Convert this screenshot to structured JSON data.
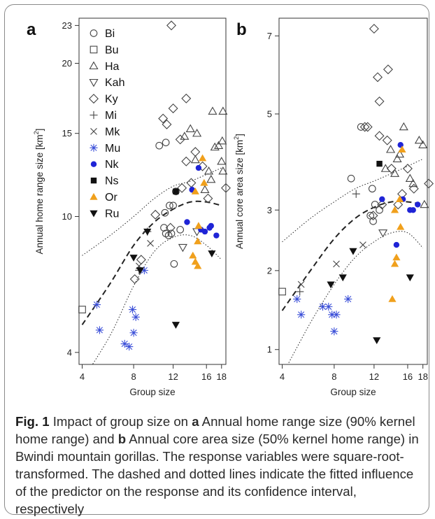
{
  "caption": {
    "label": "Fig. 1",
    "t1": " Impact of group size on ",
    "b1": "a",
    "t2": " Annual home range size (90% kernel home range) and ",
    "b2": "b",
    "t3": " Annual core area size (50% kernel home range) in Bwindi mountain gorillas. The response variables were square-root-transformed. The dashed and dotted lines indicate the fitted influence of the predictor on the response and its confidence interval, respectively"
  },
  "legend": {
    "entries": [
      {
        "name": "Bi",
        "marker": "circle-open",
        "color": "#444444"
      },
      {
        "name": "Bu",
        "marker": "square-open",
        "color": "#444444"
      },
      {
        "name": "Ha",
        "marker": "triangle-up-open",
        "color": "#444444"
      },
      {
        "name": "Kah",
        "marker": "triangle-down-open",
        "color": "#444444"
      },
      {
        "name": "Ky",
        "marker": "diamond-open",
        "color": "#444444"
      },
      {
        "name": "Mi",
        "marker": "plus",
        "color": "#444444"
      },
      {
        "name": "Mk",
        "marker": "cross",
        "color": "#444444"
      },
      {
        "name": "Mu",
        "marker": "asterisk",
        "color": "#3b4fd8"
      },
      {
        "name": "Nk",
        "marker": "circle-filled",
        "color": "#1f24d6"
      },
      {
        "name": "Ns",
        "marker": "square-filled",
        "color": "#111111"
      },
      {
        "name": "Or",
        "marker": "triangle-up-filled",
        "color": "#f0a01c"
      },
      {
        "name": "Ru",
        "marker": "triangle-down-filled",
        "color": "#111111"
      }
    ]
  },
  "chart_data": [
    {
      "panel": "a",
      "type": "scatter",
      "scale": "sqrt",
      "xlabel": "Group size",
      "ylabel_main": "Annual home range size [km",
      "ylabel_sup": "2",
      "ylabel_end": "]",
      "xticks": [
        4,
        8,
        12,
        16,
        18
      ],
      "yticks": [
        4,
        10,
        15,
        20,
        23
      ],
      "xlim": [
        3.8,
        18.6
      ],
      "ylim": [
        3.6,
        23.6
      ],
      "series": [
        {
          "name": "Bi",
          "points": [
            [
              10.5,
              14.2
            ],
            [
              11.2,
              14.4
            ],
            [
              11.6,
              10.6
            ],
            [
              11.1,
              10.2
            ],
            [
              11.0,
              9.4
            ],
            [
              11.2,
              9.1
            ],
            [
              11.5,
              9.0
            ],
            [
              11.8,
              9.1
            ],
            [
              12.0,
              10.6
            ],
            [
              12.3,
              11.4
            ],
            [
              12.1,
              7.6
            ],
            [
              12.8,
              9.3
            ]
          ]
        },
        {
          "name": "Bu",
          "points": [
            [
              4.0,
              5.6
            ]
          ]
        },
        {
          "name": "Ha",
          "points": [
            [
              13.3,
              14.8
            ],
            [
              14.0,
              15.3
            ],
            [
              14.6,
              13.3
            ],
            [
              14.8,
              15.0
            ],
            [
              15.8,
              11.5
            ],
            [
              16.3,
              12.6
            ],
            [
              16.6,
              12.1
            ],
            [
              17.1,
              14.1
            ],
            [
              16.8,
              16.5
            ],
            [
              17.6,
              14.2
            ],
            [
              18.0,
              13.2
            ],
            [
              18.1,
              14.5
            ],
            [
              18.2,
              16.5
            ],
            [
              18.2,
              12.6
            ]
          ]
        },
        {
          "name": "Kah",
          "points": [
            [
              13.1,
              8.4
            ],
            [
              14.8,
              9.2
            ]
          ]
        },
        {
          "name": "Ky",
          "points": [
            [
              11.8,
              23.0
            ],
            [
              10.9,
              16.0
            ],
            [
              11.3,
              15.6
            ],
            [
              12.0,
              16.7
            ],
            [
              12.8,
              14.6
            ],
            [
              13.5,
              17.4
            ],
            [
              13.5,
              13.2
            ],
            [
              14.1,
              11.9
            ],
            [
              14.6,
              13.8
            ],
            [
              15.5,
              12.9
            ],
            [
              16.2,
              11.0
            ],
            [
              8.1,
              6.9
            ],
            [
              8.7,
              7.8
            ],
            [
              10.1,
              10.1
            ],
            [
              11.7,
              9.4
            ],
            [
              13.0,
              11.6
            ],
            [
              18.6,
              11.6
            ]
          ]
        },
        {
          "name": "Mi",
          "points": [
            [
              8.5,
              7.3
            ],
            [
              9.3,
              9.2
            ]
          ]
        },
        {
          "name": "Mk",
          "points": [
            [
              8.5,
              7.5
            ],
            [
              9.6,
              8.6
            ]
          ]
        },
        {
          "name": "Mu",
          "points": [
            [
              5.0,
              5.8
            ],
            [
              5.2,
              4.8
            ],
            [
              7.2,
              4.3
            ],
            [
              7.6,
              4.2
            ],
            [
              8.0,
              4.7
            ],
            [
              8.2,
              5.3
            ],
            [
              7.9,
              5.6
            ],
            [
              9.0,
              7.3
            ]
          ]
        },
        {
          "name": "Nk",
          "points": [
            [
              13.6,
              9.7
            ],
            [
              14.2,
              11.5
            ],
            [
              15.0,
              12.8
            ],
            [
              15.3,
              9.3
            ],
            [
              15.8,
              9.2
            ],
            [
              16.4,
              9.4
            ],
            [
              16.6,
              9.5
            ],
            [
              17.3,
              9.0
            ]
          ]
        },
        {
          "name": "Ns",
          "points": [
            [
              12.3,
              11.4
            ]
          ]
        },
        {
          "name": "Or",
          "points": [
            [
              14.3,
              8.0
            ],
            [
              14.6,
              7.7
            ],
            [
              14.9,
              7.5
            ],
            [
              14.9,
              8.7
            ],
            [
              15.0,
              9.5
            ],
            [
              15.5,
              13.4
            ],
            [
              15.7,
              11.9
            ],
            [
              14.6,
              11.4
            ]
          ]
        },
        {
          "name": "Ru",
          "points": [
            [
              9.3,
              9.2
            ],
            [
              8.0,
              7.9
            ],
            [
              8.6,
              7.3
            ],
            [
              12.3,
              5.0
            ],
            [
              16.7,
              8.1
            ]
          ]
        }
      ],
      "fit": {
        "x": [
          4,
          6,
          8,
          10,
          12,
          14,
          16,
          18
        ],
        "y": [
          5.0,
          6.7,
          8.5,
          9.7,
          10.4,
          10.8,
          10.8,
          10.6
        ]
      },
      "ci_upper": {
        "x": [
          4,
          6,
          8,
          10,
          12,
          14,
          16,
          18
        ],
        "y": [
          8.0,
          9.0,
          10.0,
          11.0,
          11.7,
          12.0,
          12.4,
          12.8
        ]
      },
      "ci_lower": {
        "x": [
          4,
          6,
          8,
          10,
          12,
          14,
          16,
          18
        ],
        "y": [
          3.1,
          4.6,
          6.6,
          8.2,
          8.9,
          9.0,
          8.5,
          7.8
        ]
      }
    },
    {
      "panel": "b",
      "type": "scatter",
      "scale": "sqrt",
      "xlabel": "Group size",
      "ylabel_main": "Annual core area size [km",
      "ylabel_sup": "2",
      "ylabel_end": "]",
      "xticks": [
        4,
        8,
        12,
        16,
        18
      ],
      "yticks": [
        1,
        2,
        3,
        5,
        7
      ],
      "xlim": [
        3.8,
        18.6
      ],
      "ylim": [
        0.85,
        7.5
      ],
      "series": [
        {
          "name": "Bi",
          "points": [
            [
              9.6,
              3.6
            ],
            [
              10.6,
              4.7
            ],
            [
              11.8,
              3.4
            ],
            [
              11.6,
              2.9
            ],
            [
              12.1,
              3.1
            ],
            [
              12.6,
              3.0
            ],
            [
              11.9,
              2.8
            ]
          ]
        },
        {
          "name": "Bu",
          "points": [
            [
              4.0,
              1.7
            ]
          ]
        },
        {
          "name": "Ha",
          "points": [
            [
              13.3,
              3.8
            ],
            [
              13.9,
              4.2
            ],
            [
              14.4,
              3.7
            ],
            [
              14.7,
              4.0
            ],
            [
              15.0,
              4.1
            ],
            [
              15.5,
              4.7
            ],
            [
              16.3,
              3.6
            ],
            [
              16.7,
              3.5
            ],
            [
              17.5,
              4.4
            ],
            [
              18.0,
              4.3
            ],
            [
              18.2,
              3.1
            ]
          ]
        },
        {
          "name": "Kah",
          "points": [
            [
              13.0,
              2.6
            ]
          ]
        },
        {
          "name": "Ky",
          "points": [
            [
              12.0,
              7.2
            ],
            [
              12.4,
              5.9
            ],
            [
              12.6,
              5.3
            ],
            [
              13.6,
              6.1
            ],
            [
              11.0,
              4.7
            ],
            [
              11.3,
              4.7
            ],
            [
              12.6,
              4.5
            ],
            [
              13.5,
              4.4
            ],
            [
              14.0,
              3.8
            ],
            [
              14.8,
              3.1
            ],
            [
              15.3,
              3.3
            ],
            [
              16.0,
              3.8
            ],
            [
              16.8,
              3.4
            ],
            [
              18.8,
              3.5
            ],
            [
              12.9,
              3.1
            ],
            [
              11.9,
              2.9
            ]
          ]
        },
        {
          "name": "Mi",
          "points": [
            [
              5.2,
              1.7
            ],
            [
              10.1,
              3.3
            ]
          ]
        },
        {
          "name": "Mk",
          "points": [
            [
              5.3,
              1.8
            ],
            [
              8.2,
              2.1
            ],
            [
              10.8,
              2.4
            ]
          ]
        },
        {
          "name": "Mu",
          "points": [
            [
              5.0,
              1.6
            ],
            [
              5.3,
              1.4
            ],
            [
              7.0,
              1.5
            ],
            [
              7.5,
              1.5
            ],
            [
              7.8,
              1.4
            ],
            [
              8.2,
              1.4
            ],
            [
              8.0,
              1.2
            ],
            [
              9.3,
              1.6
            ]
          ]
        },
        {
          "name": "Nk",
          "points": [
            [
              12.9,
              3.2
            ],
            [
              14.6,
              2.4
            ],
            [
              15.1,
              4.3
            ],
            [
              15.4,
              3.2
            ],
            [
              16.3,
              3.0
            ],
            [
              16.7,
              3.0
            ],
            [
              17.3,
              3.1
            ]
          ]
        },
        {
          "name": "Ns",
          "points": [
            [
              12.6,
              3.9
            ]
          ]
        },
        {
          "name": "Or",
          "points": [
            [
              14.1,
              1.6
            ],
            [
              14.4,
              2.1
            ],
            [
              14.6,
              2.2
            ],
            [
              14.4,
              3.0
            ],
            [
              15.3,
              4.2
            ],
            [
              15.0,
              3.2
            ],
            [
              15.1,
              2.7
            ]
          ]
        },
        {
          "name": "Ru",
          "points": [
            [
              7.7,
              1.8
            ],
            [
              8.8,
              1.9
            ],
            [
              9.8,
              2.3
            ],
            [
              12.3,
              1.1
            ],
            [
              16.3,
              1.9
            ]
          ]
        }
      ],
      "fit": {
        "x": [
          4,
          6,
          8,
          10,
          12,
          14,
          16,
          18
        ],
        "y": [
          1.45,
          2.0,
          2.5,
          2.85,
          3.05,
          3.15,
          3.15,
          3.1
        ]
      },
      "ci_upper": {
        "x": [
          4,
          6,
          8,
          10,
          12,
          14,
          16,
          18
        ],
        "y": [
          2.45,
          2.85,
          3.15,
          3.4,
          3.55,
          3.7,
          3.85,
          4.0
        ]
      },
      "ci_lower": {
        "x": [
          4,
          6,
          8,
          10,
          12,
          14,
          16,
          18
        ],
        "y": [
          0.75,
          1.3,
          1.8,
          2.2,
          2.45,
          2.6,
          2.6,
          2.35
        ]
      }
    }
  ]
}
